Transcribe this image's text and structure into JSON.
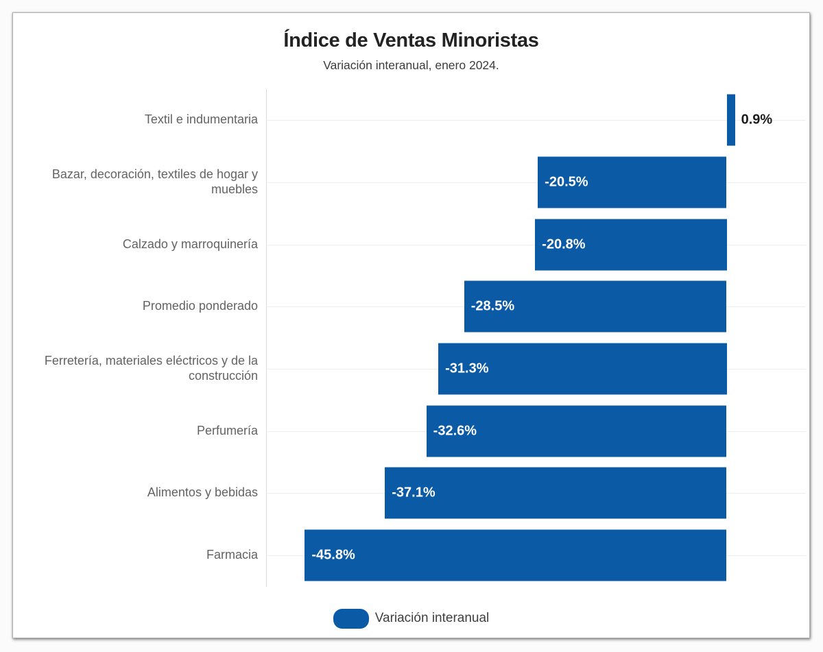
{
  "header": {
    "title": "Índice de Ventas Minoristas",
    "subtitle": "Variación interanual, enero 2024."
  },
  "legend": {
    "label": "Variación interanual"
  },
  "colors": {
    "bar": "#0b5aa6",
    "value_inside": "#ffffff",
    "value_outside": "#1c1c1c",
    "grid": "#ededed",
    "axis": "#d8d8d8",
    "category_label": "#636363"
  },
  "chart_data": {
    "type": "bar",
    "orientation": "horizontal",
    "title": "Índice de Ventas Minoristas",
    "subtitle": "Variación interanual, enero 2024.",
    "categories": [
      "Textil e indumentaria",
      "Bazar, decoración, textiles de hogar y muebles",
      "Calzado y marroquinería",
      "Promedio ponderado",
      "Ferretería, materiales eléctricos y de la construcción",
      "Perfumería",
      "Alimentos y bebidas",
      "Farmacia"
    ],
    "values": [
      0.9,
      -20.5,
      -20.8,
      -28.5,
      -31.3,
      -32.6,
      -37.1,
      -45.8
    ],
    "value_labels": [
      "0.9%",
      "-20.5%",
      "-20.8%",
      "-28.5%",
      "-31.3%",
      "-32.6%",
      "-37.1%",
      "-45.8%"
    ],
    "series_name": "Variación interanual",
    "unit": "%",
    "xlim": [
      -50,
      8.6
    ],
    "grid": true,
    "legend_position": "bottom-center"
  }
}
